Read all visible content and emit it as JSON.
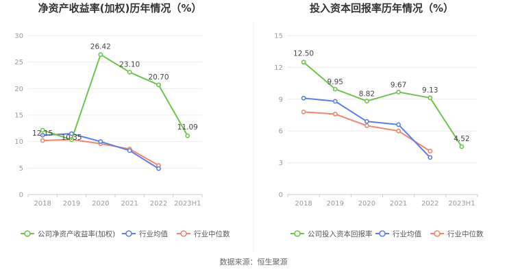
{
  "chart_data": [
    {
      "type": "line",
      "title": "净资产收益率(加权)历年情况（%）",
      "categories": [
        "2018",
        "2019",
        "2020",
        "2021",
        "2022",
        "2023H1"
      ],
      "ylim": [
        0,
        30
      ],
      "yticks": [
        0,
        5,
        10,
        15,
        20,
        25,
        30
      ],
      "series": [
        {
          "name": "公司净资产收益率(加权)",
          "color": "#6cc44a",
          "values": [
            12.15,
            10.35,
            26.42,
            23.1,
            20.7,
            11.09
          ],
          "labels": [
            "12.15",
            "10.35",
            "26.42",
            "23.10",
            "20.70",
            "11.09"
          ]
        },
        {
          "name": "行业均值",
          "color": "#5b7de8",
          "values": [
            11.2,
            11.5,
            10.0,
            8.3,
            4.9,
            null
          ]
        },
        {
          "name": "行业中位数",
          "color": "#f0866a",
          "values": [
            10.2,
            10.4,
            9.6,
            8.6,
            5.5,
            null
          ]
        }
      ]
    },
    {
      "type": "line",
      "title": "投入资本回报率历年情况（%）",
      "categories": [
        "2018",
        "2019",
        "2020",
        "2021",
        "2022",
        "2023H1"
      ],
      "ylim": [
        0,
        15
      ],
      "yticks": [
        0,
        3,
        6,
        9,
        12,
        15
      ],
      "series": [
        {
          "name": "公司投入资本回报率",
          "color": "#6cc44a",
          "values": [
            12.5,
            9.95,
            8.82,
            9.67,
            9.13,
            4.52
          ],
          "labels": [
            "12.50",
            "9.95",
            "8.82",
            "9.67",
            "9.13",
            "4.52"
          ]
        },
        {
          "name": "行业均值",
          "color": "#5b7de8",
          "values": [
            9.1,
            8.8,
            6.9,
            6.6,
            3.5,
            null
          ]
        },
        {
          "name": "行业中位数",
          "color": "#f0866a",
          "values": [
            7.8,
            7.6,
            6.5,
            6.0,
            4.1,
            null
          ]
        }
      ]
    }
  ],
  "footer": {
    "source": "数据来源：恒生聚源"
  }
}
